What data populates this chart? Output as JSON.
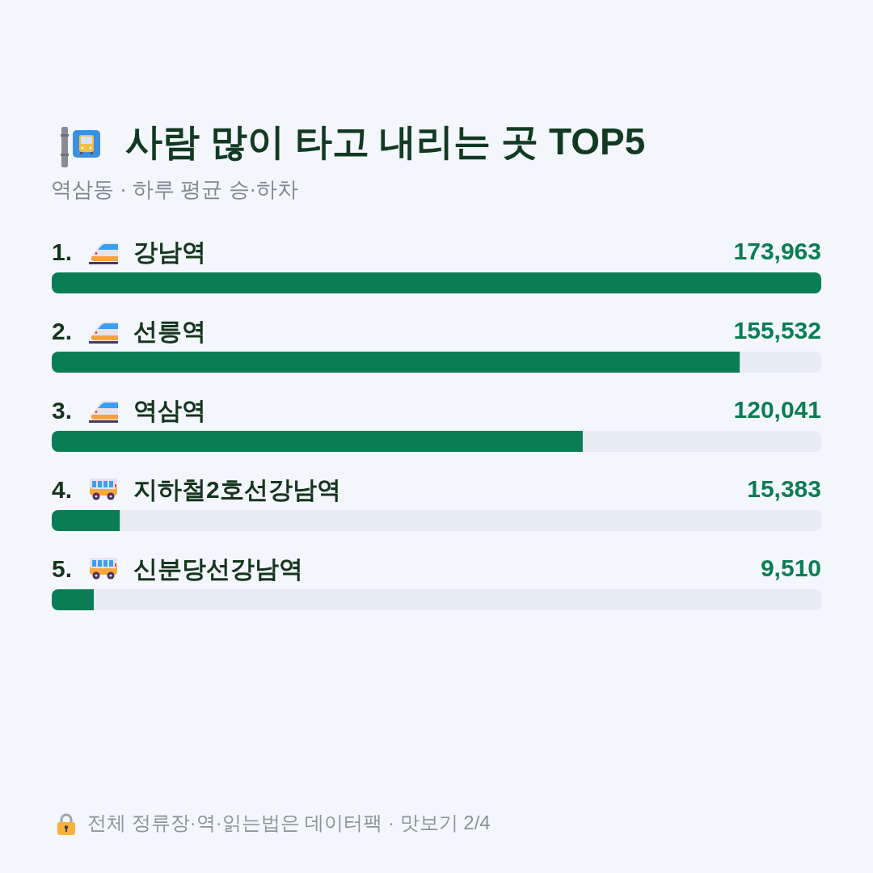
{
  "chart_data": {
    "type": "bar",
    "orientation": "horizontal",
    "title": "사람 많이 타고 내리는 곳 TOP5",
    "subtitle": "역삼동 · 하루 평균 승·하차",
    "categories": [
      "1. 강남역",
      "2. 선릉역",
      "3. 역삼역",
      "4. 지하철2호선강남역",
      "5. 신분당선강남역"
    ],
    "values": [
      173963,
      155532,
      120041,
      15383,
      9510
    ],
    "value_labels": [
      "173,963",
      "155,532",
      "120,041",
      "15,383",
      "9,510"
    ],
    "color": "#0b7d55",
    "tick_labels": "y",
    "annotations": [
      "전체 정류장·역·읽는법은 데이터팩 · 맛보기 2/4"
    ]
  }
}
